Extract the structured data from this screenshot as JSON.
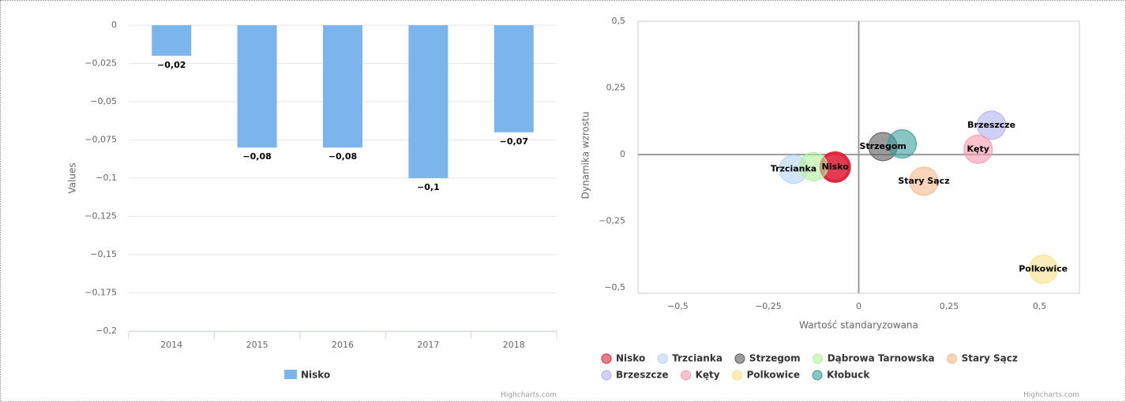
{
  "chart_data": [
    {
      "type": "bar",
      "categories": [
        "2014",
        "2015",
        "2016",
        "2017",
        "2018"
      ],
      "series": [
        {
          "name": "Nisko",
          "color": "#7cb5ec",
          "values": [
            -0.02,
            -0.08,
            -0.08,
            -0.1,
            -0.07
          ],
          "value_labels": [
            "−0,02",
            "−0,08",
            "−0,08",
            "−0,1",
            "−0,07"
          ]
        }
      ],
      "y_label": "Values",
      "ylim": [
        -0.2,
        0
      ],
      "yticks": [
        0,
        {
          "value": -0.025,
          "label": "−0,025"
        },
        {
          "value": -0.05,
          "label": "−0,05"
        },
        {
          "value": -0.075,
          "label": "−0,075"
        },
        {
          "value": -0.1,
          "label": "−0,1"
        },
        {
          "value": -0.125,
          "label": "−0,125"
        },
        {
          "value": -0.15,
          "label": "−0,15"
        },
        {
          "value": -0.175,
          "label": "−0,175"
        },
        {
          "value": -0.2,
          "label": "−0,2"
        }
      ],
      "grid": true,
      "credits": "Highcharts.com"
    },
    {
      "type": "bubble",
      "x_label": "Wartość standaryzowana",
      "y_label": "Dynamika wzrostu",
      "xlim": [
        -0.61,
        0.61
      ],
      "ylim": [
        -0.52,
        0.5
      ],
      "xticks": [
        {
          "value": -0.5,
          "label": "−0,5"
        },
        {
          "value": -0.25,
          "label": "−0,25"
        },
        0,
        {
          "value": 0.25,
          "label": "0,25"
        },
        {
          "value": 0.5,
          "label": "0,5"
        }
      ],
      "yticks": [
        {
          "value": 0.5,
          "label": "0,5"
        },
        {
          "value": 0.25,
          "label": "0,25"
        },
        0,
        {
          "value": -0.25,
          "label": "−0,25"
        },
        {
          "value": -0.5,
          "label": "−0,5"
        }
      ],
      "zero_lines": true,
      "series": [
        {
          "name": "Nisko",
          "color": "#e0273f",
          "x": [
            -0.065
          ],
          "values": [
            -0.047
          ],
          "show_label": true
        },
        {
          "name": "Trzcianka",
          "color": "#b5d3f5",
          "x": [
            -0.18
          ],
          "values": [
            -0.055
          ],
          "show_label": true
        },
        {
          "name": "Strzegom",
          "color": "#5a5a5a",
          "x": [
            0.067
          ],
          "values": [
            0.03
          ],
          "show_label": true
        },
        {
          "name": "Dąbrowa Tarnowska",
          "color": "#b3f0a0",
          "x": [
            -0.125
          ],
          "values": [
            -0.045
          ],
          "show_label": false
        },
        {
          "name": "Stary Sącz",
          "color": "#f7b98a",
          "x": [
            0.18
          ],
          "values": [
            -0.1
          ],
          "show_label": true
        },
        {
          "name": "Brzeszcze",
          "color": "#b3b0f0",
          "x": [
            0.367
          ],
          "values": [
            0.11
          ],
          "show_label": true
        },
        {
          "name": "Kęty",
          "color": "#f59aae",
          "x": [
            0.33
          ],
          "values": [
            0.02
          ],
          "show_label": true
        },
        {
          "name": "Polkowice",
          "color": "#f5e38a",
          "x": [
            0.51
          ],
          "values": [
            -0.43
          ],
          "show_label": true
        },
        {
          "name": "Kłobuck",
          "color": "#3a9e9a",
          "x": [
            0.12
          ],
          "values": [
            0.04
          ],
          "show_label": false
        }
      ],
      "credits": "Highcharts.com"
    }
  ]
}
